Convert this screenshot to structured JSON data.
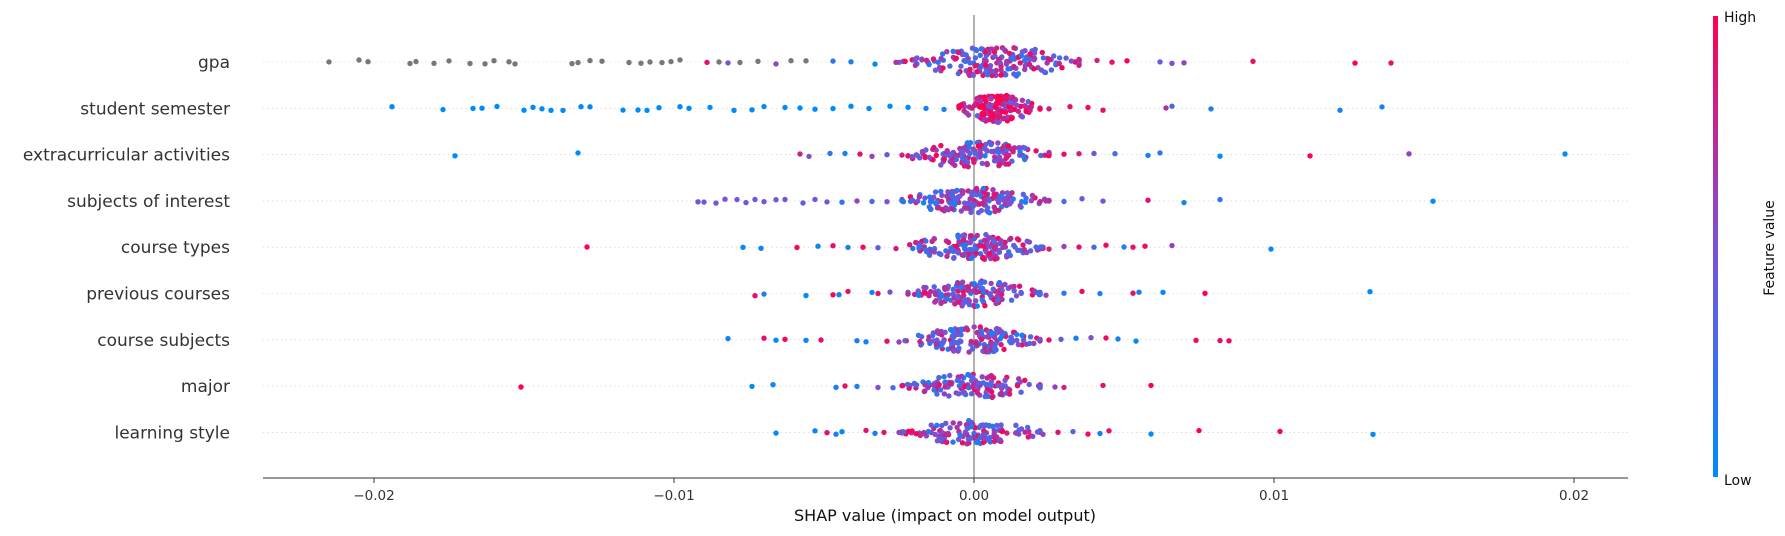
{
  "chart_data": {
    "type": "scatter",
    "subtype": "shap-beeswarm",
    "xlabel": "SHAP value (impact on model output)",
    "xlim": [
      -0.0237,
      0.0218
    ],
    "xticks": [
      -0.02,
      -0.01,
      0.0,
      0.01,
      0.02
    ],
    "xtick_labels": [
      "−0.02",
      "−0.01",
      "0.00",
      "0.01",
      "0.02"
    ],
    "zero_line": 0.0,
    "colorbar": {
      "label": "Feature value",
      "high_label": "High",
      "low_label": "Low",
      "low_color": "#008bfb",
      "high_color": "#ff0052"
    },
    "missing_color": "#777777",
    "features": [
      {
        "name": "gpa",
        "min": -0.0215,
        "max": 0.0139,
        "outliers": [
          [
            -0.0215,
            -1
          ],
          [
            -0.0205,
            -1
          ],
          [
            -0.0202,
            -1
          ],
          [
            -0.0188,
            -1
          ],
          [
            -0.0186,
            -1
          ],
          [
            -0.018,
            -1
          ],
          [
            -0.0175,
            -1
          ],
          [
            -0.0168,
            -1
          ],
          [
            -0.0163,
            -1
          ],
          [
            -0.016,
            -1
          ],
          [
            -0.0155,
            -1
          ],
          [
            -0.0153,
            -1
          ],
          [
            -0.0134,
            -1
          ],
          [
            -0.0132,
            -1
          ],
          [
            -0.0128,
            -1
          ],
          [
            -0.0124,
            -1
          ],
          [
            -0.0115,
            -1
          ],
          [
            -0.0111,
            -1
          ],
          [
            -0.0108,
            -1
          ],
          [
            -0.0104,
            -1
          ],
          [
            -0.0101,
            -1
          ],
          [
            -0.0098,
            -1
          ],
          [
            -0.0089,
            0.9
          ],
          [
            -0.0085,
            -1
          ],
          [
            -0.0082,
            0.5
          ],
          [
            -0.0078,
            -1
          ],
          [
            -0.0072,
            -1
          ],
          [
            -0.0066,
            0.6
          ],
          [
            -0.0061,
            -1
          ],
          [
            -0.0056,
            -1
          ],
          [
            -0.0047,
            0.2
          ],
          [
            -0.0041,
            0.1
          ],
          [
            -0.0033,
            0.0
          ],
          [
            -0.0026,
            0.7
          ],
          [
            0.0041,
            0.8
          ],
          [
            0.0046,
            0.9
          ],
          [
            0.0051,
            1.0
          ],
          [
            0.0062,
            0.4
          ],
          [
            0.0066,
            0.5
          ],
          [
            0.007,
            0.6
          ],
          [
            0.0093,
            0.9
          ],
          [
            0.0127,
            1.0
          ],
          [
            0.0139,
            0.9
          ]
        ],
        "core": [
          -0.0025,
          0.0035
        ],
        "core_center": 0.0008,
        "core_color": 0.55,
        "core_count": 190,
        "core_half": 15
      },
      {
        "name": "student semester",
        "min": -0.0194,
        "max": 0.0136,
        "outliers": [
          [
            -0.0194,
            0.0
          ],
          [
            -0.0177,
            0.0
          ],
          [
            -0.0167,
            0.0
          ],
          [
            -0.0164,
            0.0
          ],
          [
            -0.0159,
            0.0
          ],
          [
            -0.015,
            0.0
          ],
          [
            -0.0147,
            0.0
          ],
          [
            -0.0144,
            0.0
          ],
          [
            -0.0141,
            0.0
          ],
          [
            -0.0137,
            0.0
          ],
          [
            -0.0131,
            0.0
          ],
          [
            -0.0128,
            0.0
          ],
          [
            -0.0117,
            0.0
          ],
          [
            -0.0112,
            0.0
          ],
          [
            -0.0109,
            0.0
          ],
          [
            -0.0105,
            0.0
          ],
          [
            -0.0098,
            0.0
          ],
          [
            -0.0095,
            0.0
          ],
          [
            -0.0088,
            0.0
          ],
          [
            -0.008,
            0.0
          ],
          [
            -0.0074,
            0.0
          ],
          [
            -0.007,
            0.0
          ],
          [
            -0.0063,
            0.0
          ],
          [
            -0.0058,
            0.0
          ],
          [
            -0.0053,
            0.0
          ],
          [
            -0.0047,
            0.0
          ],
          [
            -0.0041,
            0.0
          ],
          [
            -0.0035,
            0.0
          ],
          [
            -0.0028,
            0.0
          ],
          [
            -0.0022,
            0.0
          ],
          [
            -0.0016,
            0.05
          ],
          [
            -0.001,
            0.1
          ],
          [
            0.0025,
            0.8
          ],
          [
            0.0032,
            0.9
          ],
          [
            0.0038,
            0.95
          ],
          [
            0.0043,
            0.9
          ],
          [
            0.0064,
            0.7
          ],
          [
            0.0066,
            0.3
          ],
          [
            0.0079,
            0.1
          ],
          [
            0.0122,
            0.1
          ],
          [
            0.0136,
            0.1
          ]
        ],
        "core": [
          -0.0005,
          0.0022
        ],
        "core_center": 0.0008,
        "core_color": 0.85,
        "core_count": 150,
        "core_half": 14
      },
      {
        "name": "extracurricular activities",
        "min": -0.0173,
        "max": 0.0197,
        "outliers": [
          [
            -0.0173,
            0.0
          ],
          [
            -0.0132,
            0.0
          ],
          [
            -0.0058,
            0.8
          ],
          [
            -0.0055,
            0.5
          ],
          [
            -0.0048,
            0.2
          ],
          [
            -0.0043,
            0.1
          ],
          [
            -0.0038,
            0.9
          ],
          [
            -0.0034,
            0.6
          ],
          [
            -0.0029,
            0.4
          ],
          [
            -0.0024,
            0.8
          ],
          [
            0.0025,
            0.7
          ],
          [
            0.003,
            0.9
          ],
          [
            0.0035,
            0.8
          ],
          [
            0.004,
            0.5
          ],
          [
            0.0047,
            0.3
          ],
          [
            0.0058,
            0.1
          ],
          [
            0.0062,
            0.2
          ],
          [
            0.0082,
            0.0
          ],
          [
            0.0112,
            1.0
          ],
          [
            0.0145,
            0.6
          ],
          [
            0.0197,
            0.0
          ]
        ],
        "core": [
          -0.0022,
          0.0025
        ],
        "core_center": 0.0,
        "core_color": 0.55,
        "core_count": 160,
        "core_half": 13
      },
      {
        "name": "subjects of interest",
        "min": -0.0092,
        "max": 0.0153,
        "outliers": [
          [
            -0.0092,
            0.45
          ],
          [
            -0.009,
            0.5
          ],
          [
            -0.0086,
            0.45
          ],
          [
            -0.0083,
            0.5
          ],
          [
            -0.0079,
            0.45
          ],
          [
            -0.0076,
            0.5
          ],
          [
            -0.0073,
            0.45
          ],
          [
            -0.007,
            0.5
          ],
          [
            -0.0066,
            0.45
          ],
          [
            -0.0063,
            0.5
          ],
          [
            -0.0057,
            0.4
          ],
          [
            -0.0053,
            0.45
          ],
          [
            -0.0049,
            0.5
          ],
          [
            -0.0044,
            0.2
          ],
          [
            -0.0039,
            0.6
          ],
          [
            -0.0034,
            0.3
          ],
          [
            -0.0029,
            0.5
          ],
          [
            -0.0024,
            0.1
          ],
          [
            0.0024,
            0.7
          ],
          [
            0.003,
            0.3
          ],
          [
            0.0036,
            0.4
          ],
          [
            0.0043,
            0.5
          ],
          [
            0.0058,
            0.9
          ],
          [
            0.007,
            0.1
          ],
          [
            0.0082,
            0.2
          ],
          [
            0.0153,
            0.0
          ]
        ],
        "core": [
          -0.0024,
          0.0025
        ],
        "core_center": 0.0,
        "core_color": 0.5,
        "core_count": 160,
        "core_half": 13
      },
      {
        "name": "course types",
        "min": -0.0129,
        "max": 0.0099,
        "outliers": [
          [
            -0.0129,
            1.0
          ],
          [
            -0.0077,
            0.0
          ],
          [
            -0.0071,
            0.05
          ],
          [
            -0.0059,
            0.95
          ],
          [
            -0.0052,
            0.05
          ],
          [
            -0.0047,
            0.9
          ],
          [
            -0.0042,
            0.1
          ],
          [
            -0.0037,
            0.95
          ],
          [
            -0.0032,
            0.4
          ],
          [
            -0.0026,
            0.85
          ],
          [
            0.0025,
            0.8
          ],
          [
            0.003,
            0.6
          ],
          [
            0.0035,
            0.9
          ],
          [
            0.004,
            0.3
          ],
          [
            0.0044,
            0.95
          ],
          [
            0.005,
            0.1
          ],
          [
            0.0053,
            0.9
          ],
          [
            0.0057,
            0.95
          ],
          [
            0.0066,
            0.6
          ],
          [
            0.0099,
            0.05
          ]
        ],
        "core": [
          -0.0024,
          0.0023
        ],
        "core_center": 0.0,
        "core_color": 0.55,
        "core_count": 160,
        "core_half": 13
      },
      {
        "name": "previous courses",
        "min": -0.0073,
        "max": 0.0132,
        "outliers": [
          [
            -0.0073,
            0.9
          ],
          [
            -0.007,
            0.1
          ],
          [
            -0.0056,
            0.0
          ],
          [
            -0.0047,
            0.95
          ],
          [
            -0.0045,
            0.1
          ],
          [
            -0.0042,
            0.9
          ],
          [
            -0.0034,
            0.05
          ],
          [
            -0.0032,
            0.9
          ],
          [
            -0.0028,
            0.5
          ],
          [
            0.0024,
            0.6
          ],
          [
            0.003,
            0.2
          ],
          [
            0.0036,
            0.95
          ],
          [
            0.0042,
            0.1
          ],
          [
            0.0053,
            0.9
          ],
          [
            0.0055,
            0.1
          ],
          [
            0.0063,
            0.05
          ],
          [
            0.0077,
            1.0
          ],
          [
            0.0132,
            0.0
          ]
        ],
        "core": [
          -0.0022,
          0.0022
        ],
        "core_center": 0.0,
        "core_color": 0.5,
        "core_count": 150,
        "core_half": 13
      },
      {
        "name": "course subjects",
        "min": -0.0082,
        "max": 0.0085,
        "outliers": [
          [
            -0.0082,
            0.05
          ],
          [
            -0.007,
            0.9
          ],
          [
            -0.0066,
            0.0
          ],
          [
            -0.0063,
            0.95
          ],
          [
            -0.0056,
            0.05
          ],
          [
            -0.0051,
            0.9
          ],
          [
            -0.0039,
            0.1
          ],
          [
            -0.0036,
            0.05
          ],
          [
            -0.0029,
            0.9
          ],
          [
            -0.0025,
            0.6
          ],
          [
            0.0025,
            0.9
          ],
          [
            0.0029,
            0.4
          ],
          [
            0.0034,
            0.1
          ],
          [
            0.0039,
            0.5
          ],
          [
            0.0044,
            0.95
          ],
          [
            0.0048,
            0.1
          ],
          [
            0.0054,
            0.0
          ],
          [
            0.0074,
            0.95
          ],
          [
            0.0082,
            0.9
          ],
          [
            0.0085,
            0.95
          ]
        ],
        "core": [
          -0.0023,
          0.0022
        ],
        "core_center": 0.0,
        "core_color": 0.5,
        "core_count": 150,
        "core_half": 13
      },
      {
        "name": "major",
        "min": -0.0151,
        "max": 0.0059,
        "outliers": [
          [
            -0.0151,
            1.0
          ],
          [
            -0.0074,
            0.0
          ],
          [
            -0.0067,
            0.05
          ],
          [
            -0.0046,
            0.1
          ],
          [
            -0.0043,
            0.9
          ],
          [
            -0.0039,
            0.1
          ],
          [
            -0.0032,
            0.5
          ],
          [
            -0.0027,
            0.3
          ],
          [
            0.0022,
            0.4
          ],
          [
            0.0027,
            0.6
          ],
          [
            0.003,
            0.8
          ],
          [
            0.0043,
            0.9
          ],
          [
            0.0059,
            1.0
          ]
        ],
        "core": [
          -0.0024,
          0.0022
        ],
        "core_center": 0.0,
        "core_color": 0.55,
        "core_count": 140,
        "core_half": 12
      },
      {
        "name": "learning style",
        "min": -0.0066,
        "max": 0.0133,
        "outliers": [
          [
            -0.0066,
            0.0
          ],
          [
            -0.0053,
            0.05
          ],
          [
            -0.0049,
            0.9
          ],
          [
            -0.0046,
            0.1
          ],
          [
            -0.0044,
            0.0
          ],
          [
            -0.0036,
            0.9
          ],
          [
            -0.0033,
            0.1
          ],
          [
            -0.003,
            0.9
          ],
          [
            -0.0025,
            0.6
          ],
          [
            0.0023,
            0.6
          ],
          [
            0.0028,
            0.9
          ],
          [
            0.0033,
            0.4
          ],
          [
            0.0038,
            0.95
          ],
          [
            0.0042,
            0.1
          ],
          [
            0.0045,
            0.9
          ],
          [
            0.0059,
            0.0
          ],
          [
            0.0075,
            1.0
          ],
          [
            0.0102,
            1.0
          ],
          [
            0.0133,
            0.0
          ]
        ],
        "core": [
          -0.0024,
          0.0022
        ],
        "core_center": 0.0,
        "core_color": 0.55,
        "core_count": 140,
        "core_half": 12
      }
    ]
  }
}
